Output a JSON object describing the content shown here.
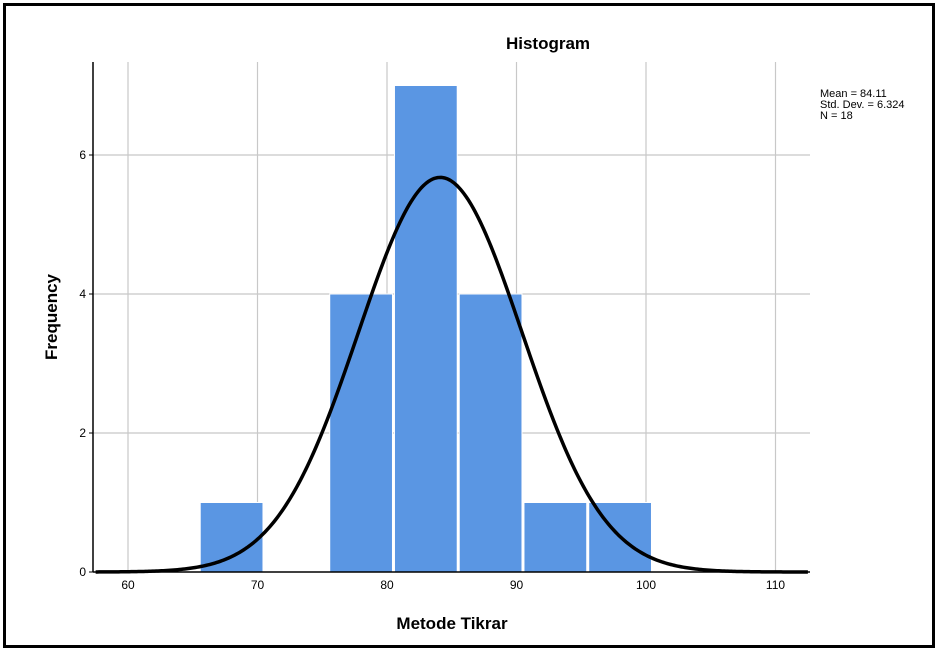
{
  "chart_data": {
    "type": "bar",
    "title": "Histogram",
    "xlabel": "Metode Tikrar",
    "ylabel": "Frequency",
    "xlim": [
      57.5,
      112.5
    ],
    "ylim": [
      0,
      7
    ],
    "x_ticks": [
      60,
      70,
      80,
      90,
      100,
      110
    ],
    "y_ticks": [
      0,
      2,
      4,
      6
    ],
    "bins": [
      {
        "start": 65.5,
        "end": 70.5,
        "count": 1
      },
      {
        "start": 70.5,
        "end": 75.5,
        "count": 0
      },
      {
        "start": 75.5,
        "end": 80.5,
        "count": 4
      },
      {
        "start": 80.5,
        "end": 85.5,
        "count": 7
      },
      {
        "start": 85.5,
        "end": 90.5,
        "count": 4
      },
      {
        "start": 90.5,
        "end": 95.5,
        "count": 1
      },
      {
        "start": 95.5,
        "end": 100.5,
        "count": 1
      }
    ],
    "normal_curve": {
      "mean": 84.11,
      "sd": 6.324,
      "n": 18,
      "bin_width": 5
    },
    "stats": [
      "Mean = 84.11",
      "Std. Dev. = 6.324",
      "N = 18"
    ],
    "grid": true,
    "legend": "none",
    "colors": {
      "bar": "#5a96e3",
      "curve": "#000000",
      "grid": "#c8c8c8"
    }
  }
}
